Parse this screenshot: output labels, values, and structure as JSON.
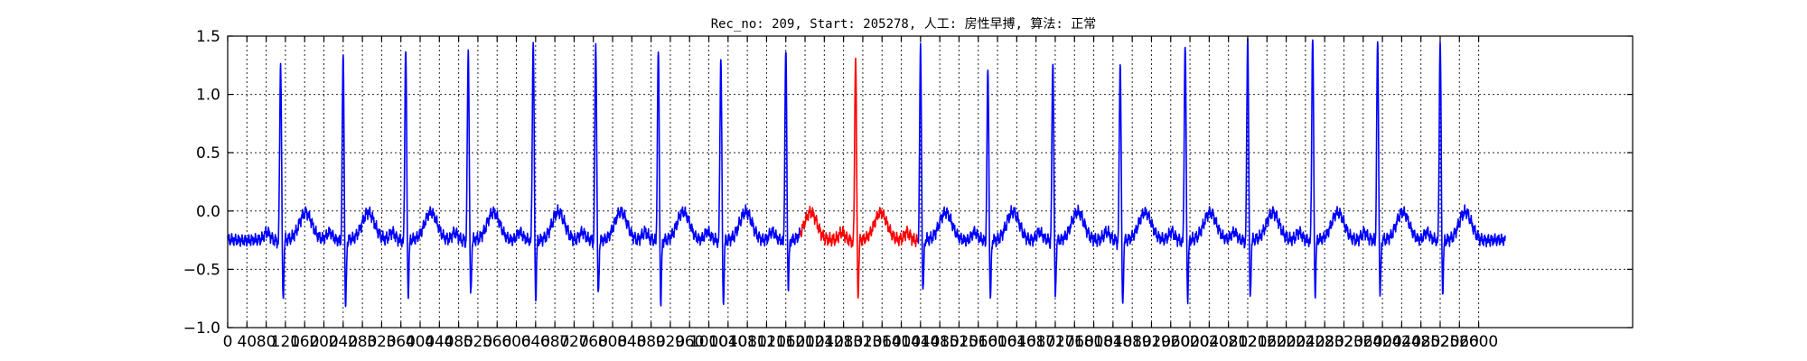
{
  "chart_data": {
    "type": "line",
    "title": "Rec_no: 209, Start: 205278, 人工: 房性早搏, 算法: 正常",
    "xlabel": "",
    "ylabel": "",
    "xlim": [
      0,
      2920
    ],
    "ylim": [
      -1.0,
      1.5
    ],
    "grid": true,
    "y_ticks": [
      -1.0,
      -0.5,
      0.0,
      0.5,
      1.0,
      1.5
    ],
    "y_tick_labels": [
      "−1.0",
      "−0.5",
      "0.0",
      "0.5",
      "1.0",
      "1.5"
    ],
    "x_ticks": [
      0,
      40,
      80,
      120,
      160,
      200,
      240,
      280,
      320,
      360,
      400,
      440,
      480,
      520,
      560,
      600,
      640,
      680,
      720,
      760,
      800,
      840,
      880,
      920,
      960,
      1000,
      1040,
      1080,
      1120,
      1160,
      1200,
      1240,
      1280,
      1320,
      1360,
      1400,
      1440,
      1480,
      1520,
      1560,
      1600,
      1640,
      1680,
      1720,
      1760,
      1800,
      1840,
      1880,
      1920,
      1960,
      2000,
      2040,
      2080,
      2120,
      2160,
      2200,
      2240,
      2280,
      2320,
      2360,
      2400,
      2440,
      2480,
      2520,
      2560,
      2600
    ],
    "x_tick_labels": [
      "0",
      "40",
      "80",
      "120",
      "160",
      "200",
      "240",
      "280",
      "320",
      "360",
      "400",
      "440",
      "480",
      "520",
      "560",
      "600",
      "640",
      "680",
      "720",
      "760",
      "800",
      "840",
      "880",
      "920",
      "960",
      "1000",
      "1040",
      "1080",
      "1120",
      "1160",
      "1200",
      "1240",
      "1280",
      "1320",
      "1360",
      "1400",
      "1440",
      "1480",
      "1520",
      "1560",
      "1600",
      "1640",
      "1680",
      "1720",
      "1760",
      "1800",
      "1840",
      "1880",
      "1920",
      "1960",
      "2000",
      "2040",
      "2080",
      "2120",
      "2160",
      "2200",
      "2240",
      "2280",
      "2320",
      "2360",
      "2400",
      "2440",
      "2480",
      "2520",
      "2560",
      "2600"
    ],
    "baseline": -0.25,
    "x_end": 2655,
    "beats": [
      {
        "r": 110,
        "r_amp": 1.28,
        "s_amp": -0.85
      },
      {
        "r": 240,
        "r_amp": 1.33,
        "s_amp": -0.93
      },
      {
        "r": 370,
        "r_amp": 1.4,
        "s_amp": -0.8
      },
      {
        "r": 500,
        "r_amp": 1.38,
        "s_amp": -0.82
      },
      {
        "r": 635,
        "r_amp": 1.47,
        "s_amp": -0.84
      },
      {
        "r": 765,
        "r_amp": 1.42,
        "s_amp": -0.83
      },
      {
        "r": 895,
        "r_amp": 1.37,
        "s_amp": -0.88
      },
      {
        "r": 1025,
        "r_amp": 1.33,
        "s_amp": -0.89
      },
      {
        "r": 1160,
        "r_amp": 1.38,
        "s_amp": -0.74
      },
      {
        "r": 1305,
        "r_amp": 1.33,
        "s_amp": -0.8
      },
      {
        "r": 1440,
        "r_amp": 1.38,
        "s_amp": -0.78
      },
      {
        "r": 1580,
        "r_amp": 1.2,
        "s_amp": -0.85
      },
      {
        "r": 1715,
        "r_amp": 1.3,
        "s_amp": -0.82
      },
      {
        "r": 1855,
        "r_amp": 1.28,
        "s_amp": -0.9
      },
      {
        "r": 1990,
        "r_amp": 1.43,
        "s_amp": -0.84
      },
      {
        "r": 2120,
        "r_amp": 1.5,
        "s_amp": -0.85
      },
      {
        "r": 2255,
        "r_amp": 1.5,
        "s_amp": -0.8
      },
      {
        "r": 2390,
        "r_amp": 1.44,
        "s_amp": -0.82
      },
      {
        "r": 2520,
        "r_amp": 1.47,
        "s_amp": -0.78
      }
    ],
    "series": [
      {
        "color": "#0000ff",
        "x_range": [
          0,
          1190
        ]
      },
      {
        "color": "#ff0000",
        "x_range": [
          1190,
          1435
        ]
      },
      {
        "color": "#0000ff",
        "x_range": [
          1435,
          2655
        ]
      }
    ]
  }
}
